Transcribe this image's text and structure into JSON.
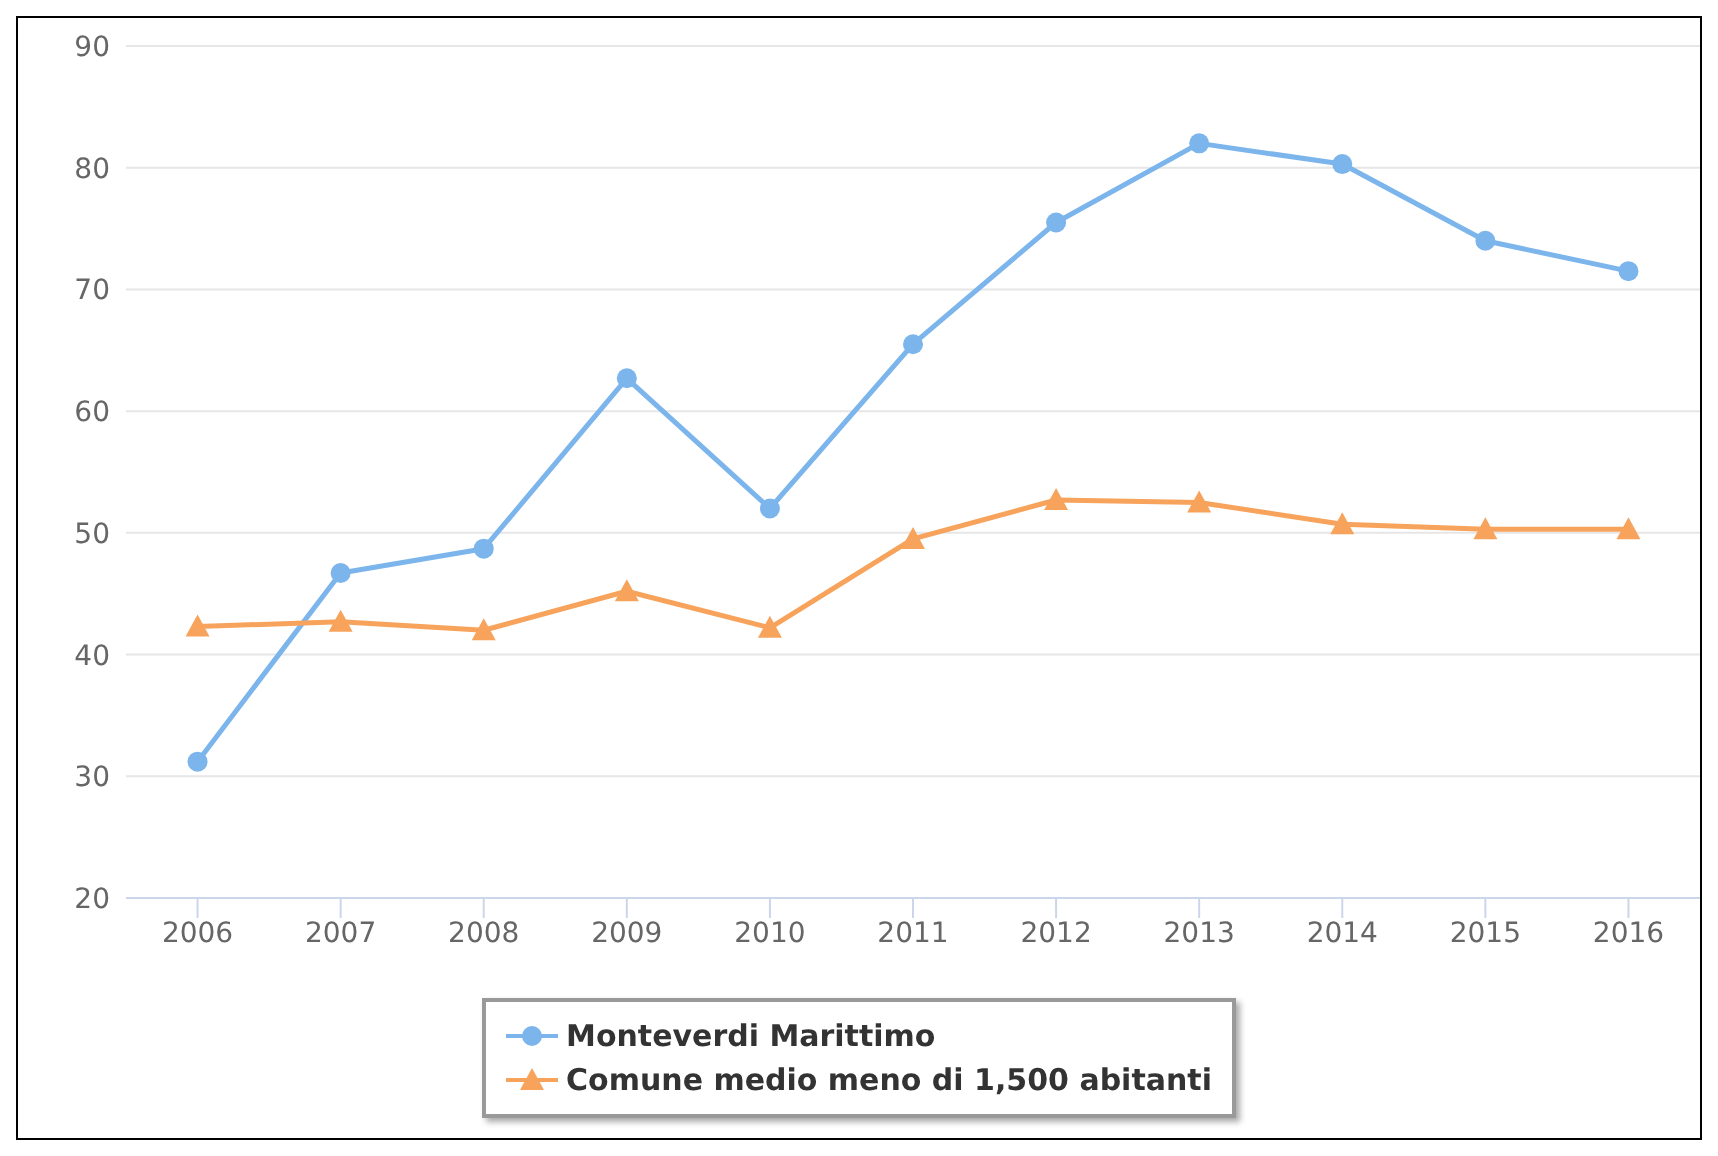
{
  "chart_data": {
    "type": "line",
    "categories": [
      "2006",
      "2007",
      "2008",
      "2009",
      "2010",
      "2011",
      "2012",
      "2013",
      "2014",
      "2015",
      "2016"
    ],
    "series": [
      {
        "name": "Monteverdi Marittimo",
        "color": "#7cb5ec",
        "marker": "circle",
        "values": [
          31.2,
          46.7,
          48.7,
          62.7,
          52.0,
          65.5,
          75.5,
          82.0,
          80.3,
          74.0,
          71.5
        ]
      },
      {
        "name": "Comune medio meno di 1,500 abitanti",
        "color": "#f7a35c",
        "marker": "triangle",
        "values": [
          42.3,
          42.7,
          42.0,
          45.2,
          42.2,
          49.5,
          52.7,
          52.5,
          50.7,
          50.3,
          50.3
        ]
      }
    ],
    "ylim": [
      20,
      90
    ],
    "yticks": [
      20,
      30,
      40,
      50,
      60,
      70,
      80,
      90
    ],
    "grid": "y",
    "legend": "bottom"
  }
}
